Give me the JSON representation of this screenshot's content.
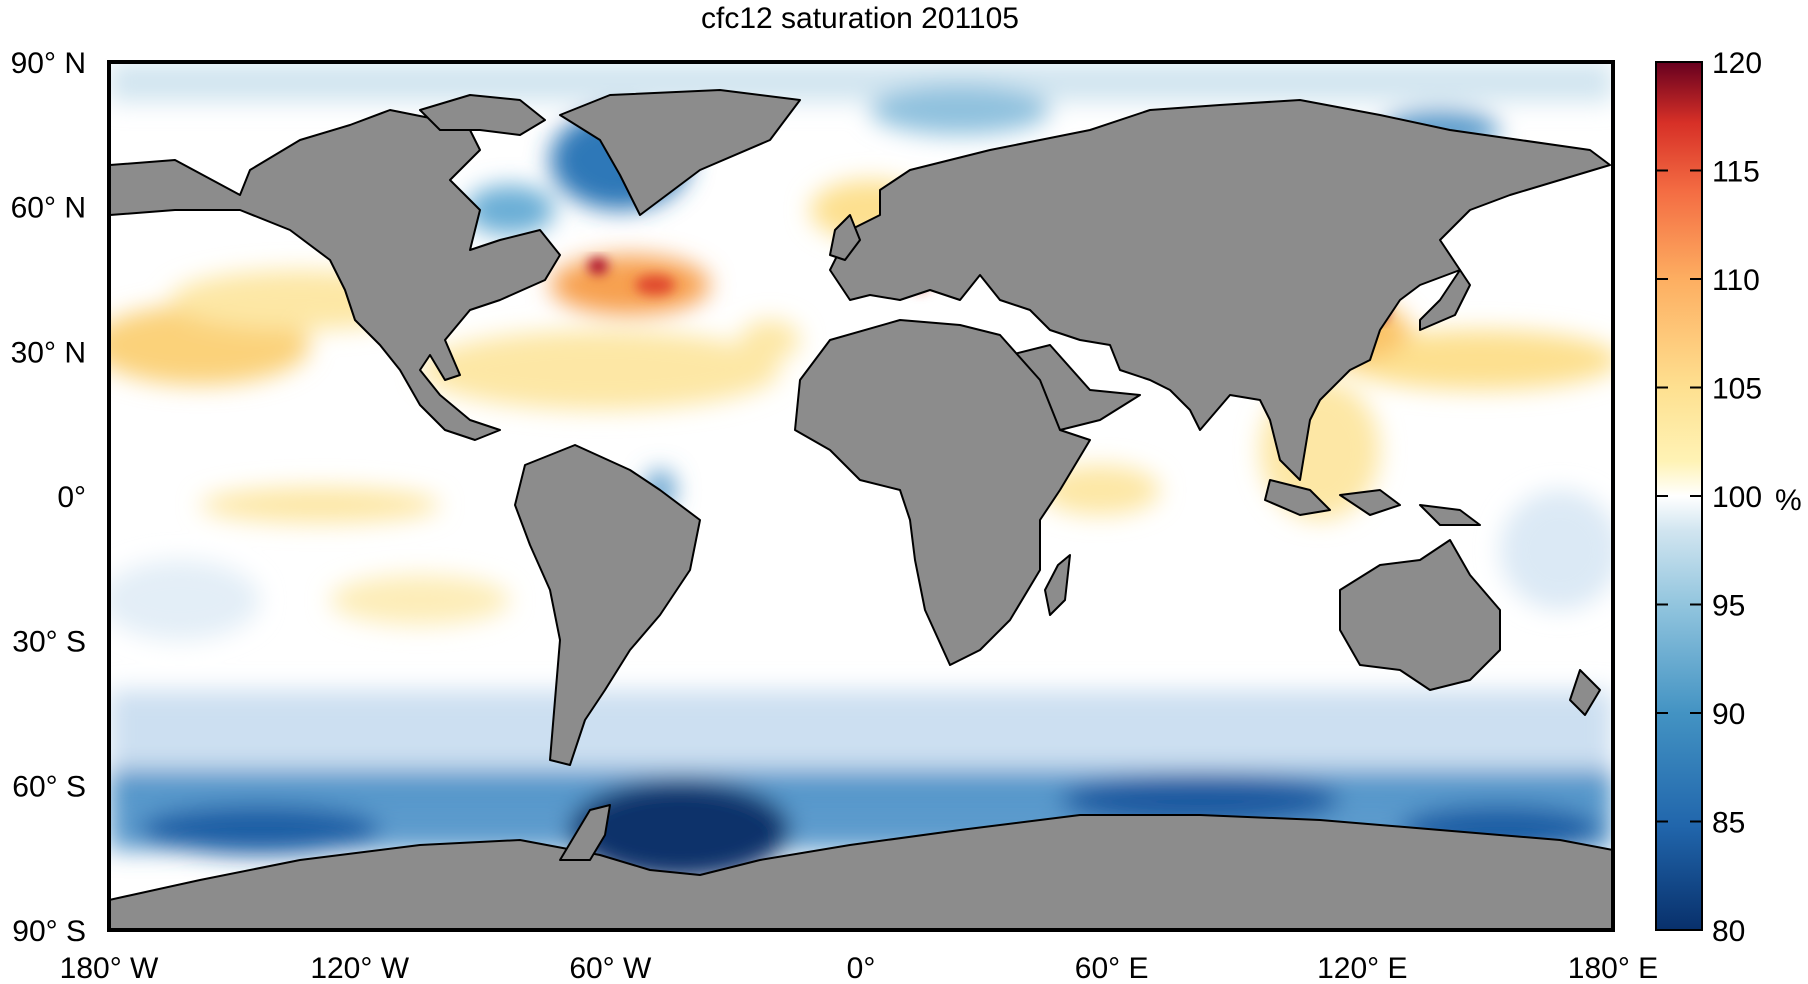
{
  "title": "cfc12 saturation 201105",
  "map": {
    "projection": "equirectangular",
    "land_color": "#8c8c8c",
    "ocean_color": "#ffffff",
    "lat_ticks": [
      {
        "value": 90,
        "label": "90° N"
      },
      {
        "value": 60,
        "label": "60° N"
      },
      {
        "value": 30,
        "label": "30° N"
      },
      {
        "value": 0,
        "label": "0°"
      },
      {
        "value": -30,
        "label": "30° S"
      },
      {
        "value": -60,
        "label": "60° S"
      },
      {
        "value": -90,
        "label": "90° S"
      }
    ],
    "lon_ticks": [
      {
        "value": -180,
        "label": "180° W"
      },
      {
        "value": -120,
        "label": "120° W"
      },
      {
        "value": -60,
        "label": "60° W"
      },
      {
        "value": 0,
        "label": "0°"
      },
      {
        "value": 60,
        "label": "60° E"
      },
      {
        "value": 120,
        "label": "120° E"
      },
      {
        "value": 180,
        "label": "180° E"
      }
    ]
  },
  "colorbar": {
    "unit": "%",
    "min": 80,
    "max": 120,
    "ticks": [
      "80",
      "85",
      "90",
      "95",
      "100",
      "105",
      "110",
      "115",
      "120"
    ],
    "colors": [
      "#08306b",
      "#2166ac",
      "#4393c3",
      "#92c5de",
      "#d1e5f0",
      "#ffffff",
      "#fee090",
      "#fdae61",
      "#f46d43",
      "#d73027",
      "#a50026",
      "#67001f"
    ]
  }
}
